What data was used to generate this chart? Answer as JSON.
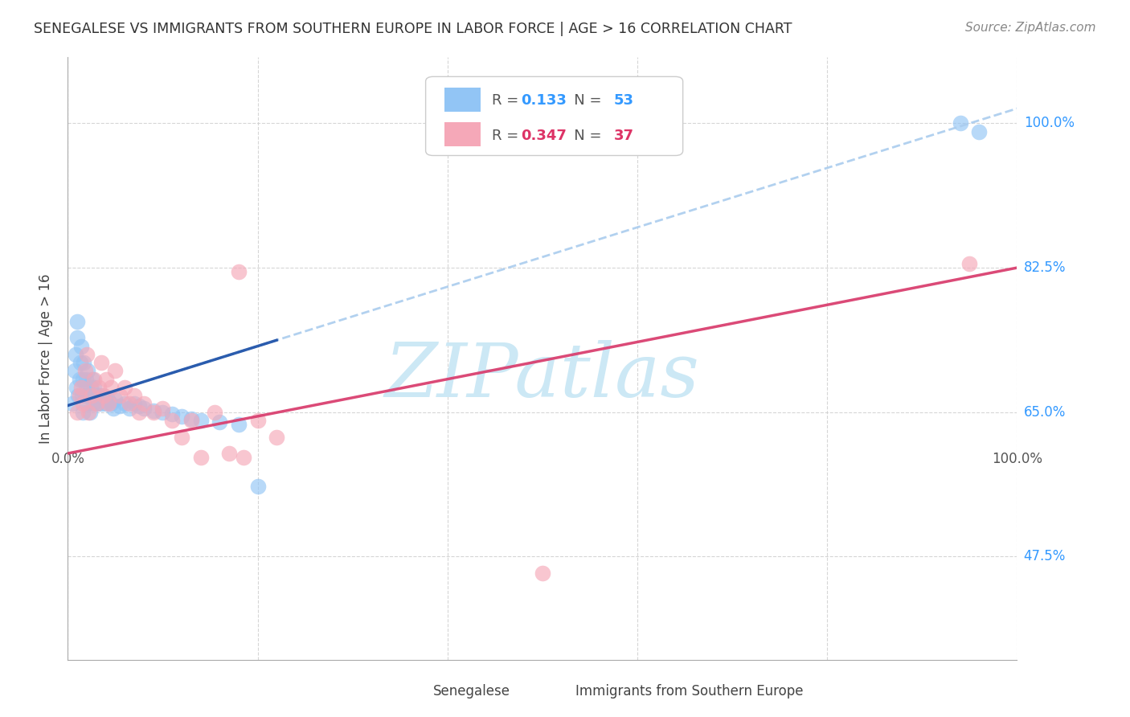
{
  "title": "SENEGALESE VS IMMIGRANTS FROM SOUTHERN EUROPE IN LABOR FORCE | AGE > 16 CORRELATION CHART",
  "source": "Source: ZipAtlas.com",
  "ylabel": "In Labor Force | Age > 16",
  "xlim": [
    0.0,
    1.0
  ],
  "ylim": [
    0.35,
    1.08
  ],
  "x_ticks": [
    0.0,
    0.2,
    0.4,
    0.6,
    0.8,
    1.0
  ],
  "y_ticks": [
    0.475,
    0.65,
    0.825,
    1.0
  ],
  "y_tick_labels": [
    "47.5%",
    "65.0%",
    "82.5%",
    "100.0%"
  ],
  "grid_color": "#cccccc",
  "background_color": "#ffffff",
  "blue_color": "#92c5f5",
  "pink_color": "#f5a8b8",
  "blue_line_color": "#2255aa",
  "pink_line_color": "#d94070",
  "blue_dashed_color": "#aaccee",
  "legend_val_blue": "#3399ff",
  "legend_val_pink": "#dd3366",
  "legend_R_blue": "0.133",
  "legend_N_blue": "53",
  "legend_R_pink": "0.347",
  "legend_N_pink": "37",
  "watermark": "ZIPatlas",
  "watermark_color": "#cce8f5",
  "blue_x": [
    0.005,
    0.007,
    0.008,
    0.009,
    0.01,
    0.01,
    0.011,
    0.012,
    0.013,
    0.014,
    0.015,
    0.016,
    0.016,
    0.017,
    0.018,
    0.019,
    0.02,
    0.02,
    0.021,
    0.022,
    0.023,
    0.024,
    0.025,
    0.026,
    0.027,
    0.028,
    0.03,
    0.031,
    0.033,
    0.035,
    0.037,
    0.04,
    0.042,
    0.045,
    0.048,
    0.05,
    0.055,
    0.06,
    0.065,
    0.07,
    0.075,
    0.08,
    0.09,
    0.1,
    0.11,
    0.12,
    0.13,
    0.14,
    0.16,
    0.18,
    0.2,
    0.94,
    0.96
  ],
  "blue_y": [
    0.66,
    0.7,
    0.72,
    0.68,
    0.74,
    0.76,
    0.67,
    0.69,
    0.71,
    0.73,
    0.67,
    0.69,
    0.65,
    0.71,
    0.67,
    0.69,
    0.66,
    0.68,
    0.7,
    0.67,
    0.65,
    0.68,
    0.67,
    0.69,
    0.66,
    0.68,
    0.67,
    0.66,
    0.67,
    0.66,
    0.67,
    0.66,
    0.665,
    0.66,
    0.655,
    0.665,
    0.658,
    0.66,
    0.655,
    0.66,
    0.658,
    0.655,
    0.652,
    0.65,
    0.648,
    0.645,
    0.642,
    0.64,
    0.638,
    0.635,
    0.56,
    1.0,
    0.99
  ],
  "pink_x": [
    0.01,
    0.012,
    0.014,
    0.016,
    0.018,
    0.02,
    0.022,
    0.025,
    0.028,
    0.03,
    0.033,
    0.035,
    0.038,
    0.04,
    0.043,
    0.045,
    0.05,
    0.055,
    0.06,
    0.065,
    0.07,
    0.075,
    0.08,
    0.09,
    0.1,
    0.11,
    0.12,
    0.13,
    0.14,
    0.155,
    0.17,
    0.185,
    0.2,
    0.22,
    0.18,
    0.5,
    0.95
  ],
  "pink_y": [
    0.65,
    0.67,
    0.68,
    0.66,
    0.7,
    0.72,
    0.65,
    0.67,
    0.69,
    0.66,
    0.68,
    0.71,
    0.67,
    0.69,
    0.66,
    0.68,
    0.7,
    0.67,
    0.68,
    0.66,
    0.67,
    0.65,
    0.66,
    0.65,
    0.655,
    0.64,
    0.62,
    0.64,
    0.595,
    0.65,
    0.6,
    0.595,
    0.64,
    0.62,
    0.82,
    0.455,
    0.83
  ],
  "blue_trend_x": [
    0.0,
    1.0
  ],
  "blue_trend_y_intercept": 0.658,
  "blue_trend_slope": 0.36,
  "pink_trend_y_intercept": 0.6,
  "pink_trend_slope": 0.225
}
